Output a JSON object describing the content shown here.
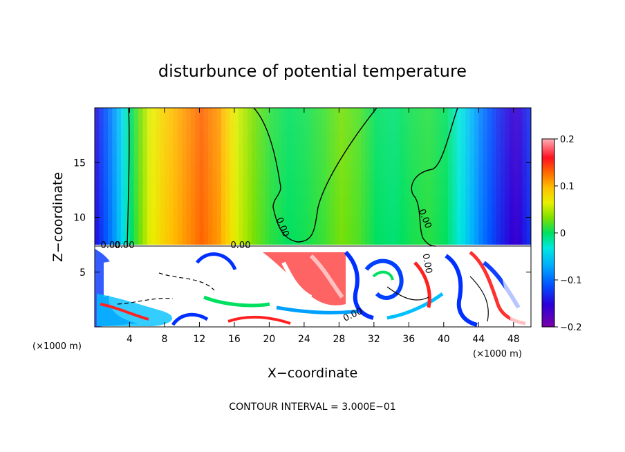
{
  "chart_data": {
    "type": "heatmap",
    "title": "disturbunce of potential temperature",
    "xlabel": "X−coordinate",
    "ylabel": "Z−coordinate",
    "x_unit_left": "(×1000 m)",
    "x_unit_right": "(×1000 m)",
    "xlim": [
      0,
      50
    ],
    "ylim": [
      0,
      20
    ],
    "x_ticks": [
      4,
      8,
      12,
      16,
      20,
      24,
      28,
      32,
      36,
      40,
      44,
      48
    ],
    "y_ticks": [
      5,
      10,
      15
    ],
    "colorbar": {
      "range": [
        -0.2,
        0.2
      ],
      "ticks": [
        "0.2",
        "0.1",
        "0",
        "−0.1",
        "−0.2"
      ],
      "tick_values": [
        0.2,
        0.1,
        0,
        -0.1,
        -0.2
      ]
    },
    "contour_interval_text": "CONTOUR INTERVAL = 3.000E−01",
    "contour_labels": [
      "0.00",
      "0.00",
      "0.00",
      "0.00",
      "0.00",
      "0.00",
      "0.00"
    ],
    "inversion_height": 7.5,
    "upper_layer_profile": {
      "x": [
        0,
        2,
        4,
        6,
        8,
        10,
        12,
        14,
        16,
        18,
        20,
        22,
        24,
        26,
        28,
        30,
        32,
        34,
        36,
        38,
        40,
        42,
        44,
        46,
        48,
        50
      ],
      "values": [
        -0.14,
        -0.08,
        0.0,
        0.06,
        0.09,
        0.11,
        0.13,
        0.11,
        0.06,
        0.03,
        0.01,
        0.0,
        0.005,
        0.015,
        0.03,
        0.02,
        0.0,
        -0.005,
        0.005,
        0.01,
        0.0,
        -0.04,
        -0.09,
        -0.13,
        -0.16,
        -0.12
      ]
    }
  }
}
